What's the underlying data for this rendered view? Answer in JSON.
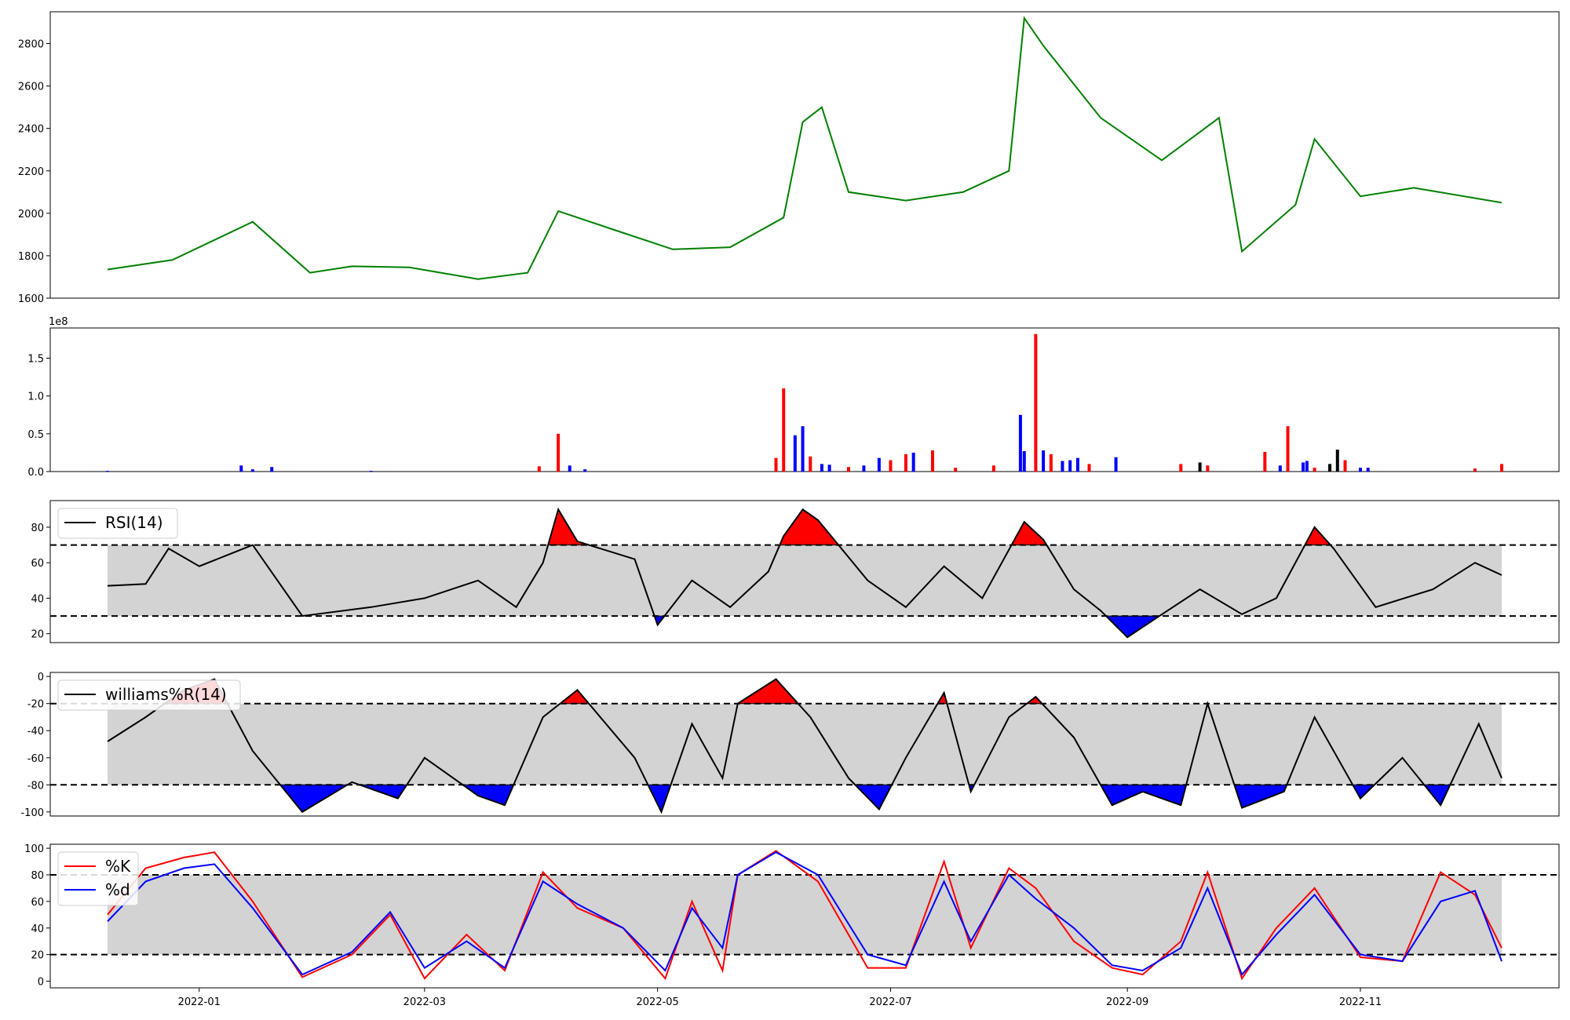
{
  "chart_data": [
    {
      "type": "line",
      "panel": "price",
      "color": "#008000",
      "ylim": [
        1600,
        2950
      ],
      "yticks": [
        1600,
        1800,
        2000,
        2200,
        2400,
        2600,
        2800
      ],
      "x": [
        "2021-12-08",
        "2021-12-25",
        "2022-01-15",
        "2022-01-30",
        "2022-02-10",
        "2022-02-25",
        "2022-03-15",
        "2022-03-28",
        "2022-04-05",
        "2022-04-20",
        "2022-05-05",
        "2022-05-20",
        "2022-06-03",
        "2022-06-08",
        "2022-06-13",
        "2022-06-20",
        "2022-07-05",
        "2022-07-20",
        "2022-08-01",
        "2022-08-05",
        "2022-08-10",
        "2022-08-25",
        "2022-09-10",
        "2022-09-25",
        "2022-10-01",
        "2022-10-15",
        "2022-10-20",
        "2022-11-01",
        "2022-11-15",
        "2022-12-08"
      ],
      "y": [
        1735,
        1780,
        1960,
        1720,
        1750,
        1745,
        1690,
        1720,
        2010,
        1920,
        1830,
        1840,
        1980,
        2430,
        2500,
        2100,
        2060,
        2100,
        2200,
        2920,
        2790,
        2450,
        2250,
        2450,
        1820,
        2040,
        2350,
        2080,
        2120,
        2050
      ]
    },
    {
      "type": "bar",
      "panel": "volume",
      "scale_label": "1e8",
      "ylim": [
        0,
        1.9
      ],
      "yticks": [
        "0.0",
        "0.5",
        "1.0",
        "1.5"
      ],
      "colors": {
        "up": "#ff0000",
        "down": "#0000ff",
        "flat": "#000000"
      },
      "bars": [
        {
          "x": "2021-12-08",
          "value": 0.01,
          "dir": "down"
        },
        {
          "x": "2022-01-12",
          "value": 0.08,
          "dir": "down"
        },
        {
          "x": "2022-01-15",
          "value": 0.03,
          "dir": "down"
        },
        {
          "x": "2022-01-20",
          "value": 0.06,
          "dir": "down"
        },
        {
          "x": "2022-02-15",
          "value": 0.01,
          "dir": "down"
        },
        {
          "x": "2022-03-31",
          "value": 0.07,
          "dir": "up"
        },
        {
          "x": "2022-04-05",
          "value": 0.5,
          "dir": "up"
        },
        {
          "x": "2022-04-08",
          "value": 0.08,
          "dir": "down"
        },
        {
          "x": "2022-04-12",
          "value": 0.03,
          "dir": "down"
        },
        {
          "x": "2022-06-01",
          "value": 0.18,
          "dir": "up"
        },
        {
          "x": "2022-06-03",
          "value": 1.1,
          "dir": "up"
        },
        {
          "x": "2022-06-06",
          "value": 0.48,
          "dir": "down"
        },
        {
          "x": "2022-06-08",
          "value": 0.6,
          "dir": "down"
        },
        {
          "x": "2022-06-10",
          "value": 0.2,
          "dir": "up"
        },
        {
          "x": "2022-06-13",
          "value": 0.1,
          "dir": "down"
        },
        {
          "x": "2022-06-15",
          "value": 0.09,
          "dir": "down"
        },
        {
          "x": "2022-06-20",
          "value": 0.06,
          "dir": "up"
        },
        {
          "x": "2022-06-24",
          "value": 0.08,
          "dir": "down"
        },
        {
          "x": "2022-06-28",
          "value": 0.18,
          "dir": "down"
        },
        {
          "x": "2022-07-01",
          "value": 0.15,
          "dir": "up"
        },
        {
          "x": "2022-07-05",
          "value": 0.23,
          "dir": "up"
        },
        {
          "x": "2022-07-07",
          "value": 0.25,
          "dir": "down"
        },
        {
          "x": "2022-07-12",
          "value": 0.28,
          "dir": "up"
        },
        {
          "x": "2022-07-18",
          "value": 0.05,
          "dir": "up"
        },
        {
          "x": "2022-07-28",
          "value": 0.08,
          "dir": "up"
        },
        {
          "x": "2022-08-04",
          "value": 0.75,
          "dir": "down"
        },
        {
          "x": "2022-08-05",
          "value": 0.27,
          "dir": "down"
        },
        {
          "x": "2022-08-08",
          "value": 1.82,
          "dir": "up"
        },
        {
          "x": "2022-08-10",
          "value": 0.28,
          "dir": "down"
        },
        {
          "x": "2022-08-12",
          "value": 0.23,
          "dir": "up"
        },
        {
          "x": "2022-08-15",
          "value": 0.14,
          "dir": "down"
        },
        {
          "x": "2022-08-17",
          "value": 0.15,
          "dir": "down"
        },
        {
          "x": "2022-08-19",
          "value": 0.18,
          "dir": "down"
        },
        {
          "x": "2022-08-22",
          "value": 0.1,
          "dir": "up"
        },
        {
          "x": "2022-08-29",
          "value": 0.19,
          "dir": "down"
        },
        {
          "x": "2022-09-15",
          "value": 0.1,
          "dir": "up"
        },
        {
          "x": "2022-09-20",
          "value": 0.12,
          "dir": "flat"
        },
        {
          "x": "2022-09-22",
          "value": 0.08,
          "dir": "up"
        },
        {
          "x": "2022-10-07",
          "value": 0.26,
          "dir": "up"
        },
        {
          "x": "2022-10-11",
          "value": 0.08,
          "dir": "down"
        },
        {
          "x": "2022-10-13",
          "value": 0.6,
          "dir": "up"
        },
        {
          "x": "2022-10-17",
          "value": 0.12,
          "dir": "down"
        },
        {
          "x": "2022-10-18",
          "value": 0.14,
          "dir": "down"
        },
        {
          "x": "2022-10-20",
          "value": 0.05,
          "dir": "up"
        },
        {
          "x": "2022-10-24",
          "value": 0.1,
          "dir": "flat"
        },
        {
          "x": "2022-10-26",
          "value": 0.29,
          "dir": "flat"
        },
        {
          "x": "2022-10-28",
          "value": 0.15,
          "dir": "up"
        },
        {
          "x": "2022-11-01",
          "value": 0.05,
          "dir": "down"
        },
        {
          "x": "2022-11-03",
          "value": 0.05,
          "dir": "down"
        },
        {
          "x": "2022-12-01",
          "value": 0.04,
          "dir": "up"
        },
        {
          "x": "2022-12-08",
          "value": 0.1,
          "dir": "up"
        }
      ]
    },
    {
      "type": "line",
      "panel": "rsi",
      "legend": "RSI(14)",
      "ylim": [
        15,
        95
      ],
      "yticks": [
        20,
        40,
        60,
        80
      ],
      "band": [
        30,
        70
      ],
      "line_color": "#000000",
      "overbought_color": "#ff0000",
      "oversold_color": "#0000ff",
      "band_color": "#d3d3d3",
      "x": [
        "2021-12-08",
        "2021-12-18",
        "2021-12-24",
        "2022-01-01",
        "2022-01-15",
        "2022-01-28",
        "2022-02-15",
        "2022-03-01",
        "2022-03-15",
        "2022-03-25",
        "2022-04-01",
        "2022-04-05",
        "2022-04-10",
        "2022-04-25",
        "2022-05-01",
        "2022-05-10",
        "2022-05-20",
        "2022-05-30",
        "2022-06-03",
        "2022-06-08",
        "2022-06-12",
        "2022-06-25",
        "2022-07-05",
        "2022-07-15",
        "2022-07-25",
        "2022-08-05",
        "2022-08-10",
        "2022-08-18",
        "2022-08-25",
        "2022-09-01",
        "2022-09-08",
        "2022-09-20",
        "2022-10-01",
        "2022-10-10",
        "2022-10-20",
        "2022-10-25",
        "2022-11-05",
        "2022-11-20",
        "2022-12-01",
        "2022-12-08"
      ],
      "y": [
        47,
        48,
        68,
        58,
        70,
        30,
        35,
        40,
        50,
        35,
        60,
        90,
        72,
        62,
        25,
        50,
        35,
        55,
        75,
        90,
        84,
        50,
        35,
        58,
        40,
        83,
        73,
        45,
        33,
        18,
        28,
        45,
        31,
        40,
        80,
        68,
        35,
        45,
        60,
        53
      ]
    },
    {
      "type": "line",
      "panel": "williams",
      "legend": "williams%R(14)",
      "ylim": [
        -103,
        3
      ],
      "yticks": [
        0,
        -20,
        -40,
        -60,
        -80,
        -100
      ],
      "band": [
        -80,
        -20
      ],
      "line_color": "#000000",
      "overbought_color": "#ff0000",
      "oversold_color": "#0000ff",
      "band_color": "#d3d3d3",
      "x": [
        "2021-12-08",
        "2021-12-18",
        "2021-12-28",
        "2022-01-05",
        "2022-01-15",
        "2022-01-28",
        "2022-02-10",
        "2022-02-22",
        "2022-03-01",
        "2022-03-15",
        "2022-03-22",
        "2022-04-01",
        "2022-04-10",
        "2022-04-25",
        "2022-05-02",
        "2022-05-10",
        "2022-05-18",
        "2022-05-22",
        "2022-06-01",
        "2022-06-10",
        "2022-06-20",
        "2022-06-28",
        "2022-07-05",
        "2022-07-15",
        "2022-07-22",
        "2022-08-01",
        "2022-08-08",
        "2022-08-18",
        "2022-08-28",
        "2022-09-05",
        "2022-09-15",
        "2022-09-22",
        "2022-10-01",
        "2022-10-12",
        "2022-10-20",
        "2022-11-01",
        "2022-11-12",
        "2022-11-22",
        "2022-12-02",
        "2022-12-08"
      ],
      "y": [
        -48,
        -30,
        -10,
        -2,
        -55,
        -100,
        -78,
        -90,
        -60,
        -88,
        -95,
        -30,
        -10,
        -60,
        -100,
        -35,
        -75,
        -20,
        -2,
        -30,
        -75,
        -98,
        -60,
        -12,
        -85,
        -30,
        -15,
        -45,
        -95,
        -85,
        -95,
        -20,
        -97,
        -85,
        -30,
        -90,
        -60,
        -95,
        -35,
        -75
      ]
    },
    {
      "type": "line",
      "panel": "stochastic",
      "ylim": [
        -5,
        103
      ],
      "yticks": [
        0,
        20,
        40,
        60,
        80,
        100
      ],
      "band": [
        20,
        80
      ],
      "band_color": "#d3d3d3",
      "series": [
        {
          "name": "%K",
          "color": "#ff0000",
          "x": [
            "2021-12-08",
            "2021-12-18",
            "2021-12-28",
            "2022-01-05",
            "2022-01-15",
            "2022-01-28",
            "2022-02-10",
            "2022-02-20",
            "2022-03-01",
            "2022-03-12",
            "2022-03-22",
            "2022-04-01",
            "2022-04-10",
            "2022-04-22",
            "2022-05-03",
            "2022-05-10",
            "2022-05-18",
            "2022-05-22",
            "2022-06-01",
            "2022-06-12",
            "2022-06-25",
            "2022-07-05",
            "2022-07-15",
            "2022-07-22",
            "2022-08-01",
            "2022-08-08",
            "2022-08-18",
            "2022-08-28",
            "2022-09-05",
            "2022-09-15",
            "2022-09-22",
            "2022-10-01",
            "2022-10-10",
            "2022-10-20",
            "2022-11-01",
            "2022-11-12",
            "2022-11-22",
            "2022-12-01",
            "2022-12-08"
          ],
          "y": [
            50,
            85,
            93,
            97,
            60,
            3,
            20,
            50,
            2,
            35,
            8,
            82,
            55,
            40,
            2,
            60,
            8,
            80,
            98,
            75,
            10,
            10,
            90,
            25,
            85,
            70,
            30,
            10,
            5,
            30,
            82,
            2,
            40,
            70,
            18,
            15,
            82,
            65,
            25
          ]
        },
        {
          "name": "%d",
          "color": "#0000ff",
          "x": [
            "2021-12-08",
            "2021-12-18",
            "2021-12-28",
            "2022-01-05",
            "2022-01-15",
            "2022-01-28",
            "2022-02-10",
            "2022-02-20",
            "2022-03-01",
            "2022-03-12",
            "2022-03-22",
            "2022-04-01",
            "2022-04-10",
            "2022-04-22",
            "2022-05-03",
            "2022-05-10",
            "2022-05-18",
            "2022-05-22",
            "2022-06-01",
            "2022-06-12",
            "2022-06-25",
            "2022-07-05",
            "2022-07-15",
            "2022-07-22",
            "2022-08-01",
            "2022-08-08",
            "2022-08-18",
            "2022-08-28",
            "2022-09-05",
            "2022-09-15",
            "2022-09-22",
            "2022-10-01",
            "2022-10-10",
            "2022-10-20",
            "2022-11-01",
            "2022-11-12",
            "2022-11-22",
            "2022-12-01",
            "2022-12-08"
          ],
          "y": [
            45,
            75,
            85,
            88,
            55,
            5,
            22,
            52,
            10,
            30,
            10,
            75,
            58,
            40,
            8,
            55,
            25,
            80,
            97,
            80,
            20,
            12,
            75,
            30,
            80,
            62,
            40,
            12,
            8,
            25,
            70,
            5,
            35,
            65,
            20,
            15,
            60,
            68,
            15
          ]
        }
      ]
    }
  ],
  "x_axis": {
    "range": [
      "2021-11-23",
      "2022-12-23"
    ],
    "ticks": [
      {
        "date": "2022-01-01",
        "label": "2022-01"
      },
      {
        "date": "2022-03-01",
        "label": "2022-03"
      },
      {
        "date": "2022-05-01",
        "label": "2022-05"
      },
      {
        "date": "2022-07-01",
        "label": "2022-07"
      },
      {
        "date": "2022-09-01",
        "label": "2022-09"
      },
      {
        "date": "2022-11-01",
        "label": "2022-11"
      }
    ]
  }
}
